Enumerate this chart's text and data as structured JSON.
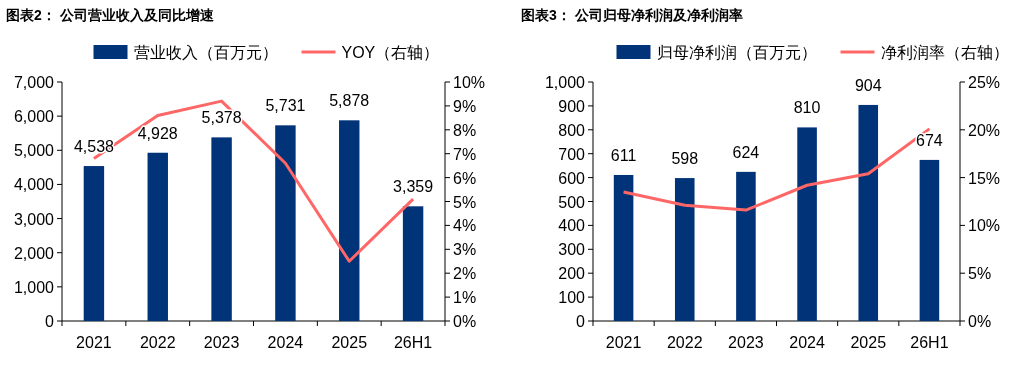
{
  "chart_data": [
    {
      "type": "bar",
      "title": "图表2：  公司营业收入及同比增速",
      "categories": [
        "2021",
        "2022",
        "2023",
        "2024",
        "2025",
        "26H1"
      ],
      "series": [
        {
          "name": "营业收入（百万元）",
          "color": "#003378",
          "values": [
            4538,
            4928,
            5378,
            5731,
            5878,
            3359
          ],
          "value_labels": [
            "4,538",
            "4,928",
            "5,378",
            "5,731",
            "5,878",
            "3,359"
          ]
        },
        {
          "name": "YOY（右轴）",
          "type": "line",
          "axis": "y2",
          "color": "#ff6666",
          "values": [
            6.8,
            8.6,
            9.2,
            6.6,
            2.5,
            5.1
          ]
        }
      ],
      "ylim": [
        0,
        7000
      ],
      "yticks": [
        {
          "value": 0,
          "label": "0"
        },
        {
          "value": 1000,
          "label": "1,000"
        },
        {
          "value": 2000,
          "label": "2,000"
        },
        {
          "value": 3000,
          "label": "3,000"
        },
        {
          "value": 4000,
          "label": "4,000"
        },
        {
          "value": 5000,
          "label": "5,000"
        },
        {
          "value": 6000,
          "label": "6,000"
        },
        {
          "value": 7000,
          "label": "7,000"
        }
      ],
      "y2lim": [
        0,
        10
      ],
      "y2ticks": [
        {
          "value": 0,
          "label": "0%"
        },
        {
          "value": 1,
          "label": "1%"
        },
        {
          "value": 2,
          "label": "2%"
        },
        {
          "value": 3,
          "label": "3%"
        },
        {
          "value": 4,
          "label": "4%"
        },
        {
          "value": 5,
          "label": "5%"
        },
        {
          "value": 6,
          "label": "6%"
        },
        {
          "value": 7,
          "label": "7%"
        },
        {
          "value": 8,
          "label": "8%"
        },
        {
          "value": 9,
          "label": "9%"
        },
        {
          "value": 10,
          "label": "10%"
        }
      ],
      "legend": "top"
    },
    {
      "type": "bar",
      "title": "图表3：  公司归母净利润及净利润率",
      "categories": [
        "2021",
        "2022",
        "2023",
        "2024",
        "2025",
        "26H1"
      ],
      "series": [
        {
          "name": "归母净利润（百万元）",
          "color": "#003378",
          "values": [
            611,
            598,
            624,
            810,
            904,
            674
          ],
          "value_labels": [
            "611",
            "598",
            "624",
            "810",
            "904",
            "674"
          ]
        },
        {
          "name": "净利润率（右轴）",
          "type": "line",
          "axis": "y2",
          "color": "#ff6666",
          "values": [
            13.5,
            12.1,
            11.6,
            14.2,
            15.4,
            20.1
          ]
        }
      ],
      "ylim": [
        0,
        1000
      ],
      "yticks": [
        {
          "value": 0,
          "label": "0"
        },
        {
          "value": 100,
          "label": "100"
        },
        {
          "value": 200,
          "label": "200"
        },
        {
          "value": 300,
          "label": "300"
        },
        {
          "value": 400,
          "label": "400"
        },
        {
          "value": 500,
          "label": "500"
        },
        {
          "value": 600,
          "label": "600"
        },
        {
          "value": 700,
          "label": "700"
        },
        {
          "value": 800,
          "label": "800"
        },
        {
          "value": 900,
          "label": "900"
        },
        {
          "value": 1000,
          "label": "1,000"
        }
      ],
      "y2lim": [
        0,
        25
      ],
      "y2ticks": [
        {
          "value": 0,
          "label": "0%"
        },
        {
          "value": 5,
          "label": "5%"
        },
        {
          "value": 10,
          "label": "10%"
        },
        {
          "value": 15,
          "label": "15%"
        },
        {
          "value": 20,
          "label": "20%"
        },
        {
          "value": 25,
          "label": "25%"
        }
      ],
      "legend": "top"
    }
  ]
}
